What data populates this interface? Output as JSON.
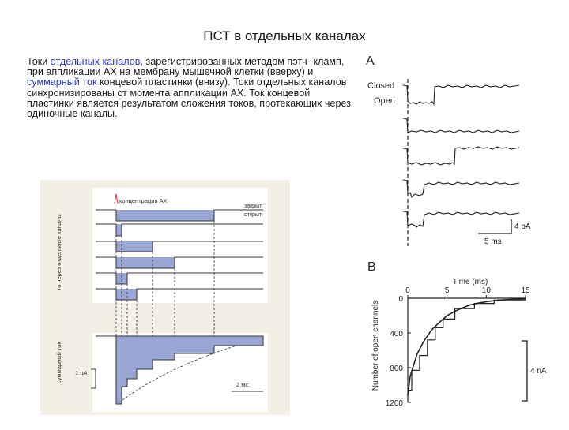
{
  "slide": {
    "title": "ПСТ в отдельных каналах"
  },
  "body": {
    "p1": "Токи ",
    "hl1": "отдельных каналов",
    "p2": ", зарегистрированных методом пэтч -кламп, при аппликации АХ на мембрану мышечной клетки (вверху) и ",
    "hl2": "суммарный ток",
    "p3": " концевой пластинки (внизу). Токи отдельных каналов синхронизированы от момента аппликации АХ. Ток концевой пластинки является результатом сложения токов, протекающих через одиночные каналы."
  },
  "left_figure": {
    "concentration_label": "концентрация АХ",
    "closed_label": "закрыт",
    "open_label": "открыт",
    "side_label_top": "то через отдельные каналы",
    "side_label_bottom": "суммарный ток",
    "scale_current": "1 nA",
    "scale_time": "2 мс",
    "colors": {
      "fill": "#9aa6d4",
      "background": "#f3efe4",
      "trace": "#333333"
    }
  },
  "right_figure": {
    "panel_a_label": "A",
    "closed_label": "Closed",
    "open_label": "Open",
    "scale_current": "4 pA",
    "scale_time": "5 ms",
    "panel_b_label": "B"
  },
  "chart_data": {
    "type": "line",
    "title": "",
    "xlabel": "Time (ms)",
    "ylabel": "Number of open channels",
    "xlim": [
      0,
      15
    ],
    "ylim": [
      1200,
      0
    ],
    "xticks": [
      0,
      5,
      10,
      15
    ],
    "yticks": [
      0,
      400,
      800,
      1200
    ],
    "scale_label": "4 nA",
    "series": [
      {
        "x": [
          0,
          0.3,
          0.7,
          1.2,
          2,
          3,
          4,
          5,
          6,
          7,
          8,
          9,
          10,
          11,
          12,
          13,
          14,
          15
        ],
        "y": [
          1120,
          900,
          780,
          640,
          500,
          370,
          280,
          200,
          150,
          110,
          75,
          55,
          40,
          28,
          20,
          14,
          10,
          5
        ]
      },
      {
        "x": [
          0,
          0.5,
          0.5,
          1.5,
          1.5,
          2.5,
          2.5,
          3.5,
          3.5,
          4.5,
          4.5,
          6,
          6,
          8.5,
          8.5,
          11,
          11,
          15
        ],
        "y": [
          1060,
          1060,
          830,
          830,
          660,
          660,
          480,
          480,
          340,
          340,
          240,
          240,
          120,
          120,
          60,
          60,
          20,
          20
        ]
      }
    ]
  }
}
